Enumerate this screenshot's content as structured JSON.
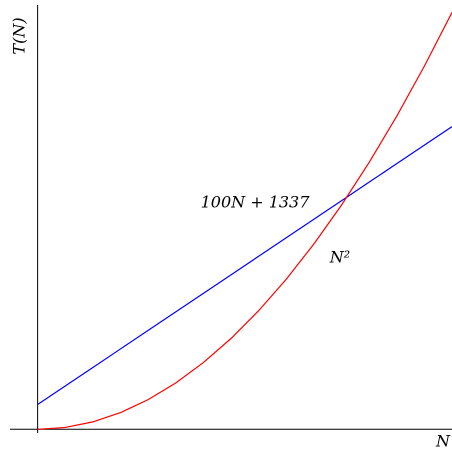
{
  "chart_data": {
    "type": "line",
    "x_label": "N",
    "y_label": "T(N)",
    "x": [
      0,
      10,
      20,
      30,
      40,
      50,
      60,
      70,
      80,
      90,
      100,
      110,
      120,
      130,
      140,
      150
    ],
    "series": [
      {
        "name": "100N + 1337",
        "color": "#0000ff",
        "values": [
          1337,
          2337,
          3337,
          4337,
          5337,
          6337,
          7337,
          8337,
          9337,
          10337,
          11337,
          12337,
          13337,
          14337,
          15337,
          16337
        ]
      },
      {
        "name": "N²",
        "color": "#ff0000",
        "values": [
          0,
          100,
          400,
          900,
          1600,
          2500,
          3600,
          4900,
          6400,
          8100,
          10000,
          12100,
          14400,
          16900,
          19600,
          22500
        ]
      }
    ],
    "xlim": [
      -10,
      150
    ],
    "ylim": [
      -200,
      22900
    ]
  }
}
